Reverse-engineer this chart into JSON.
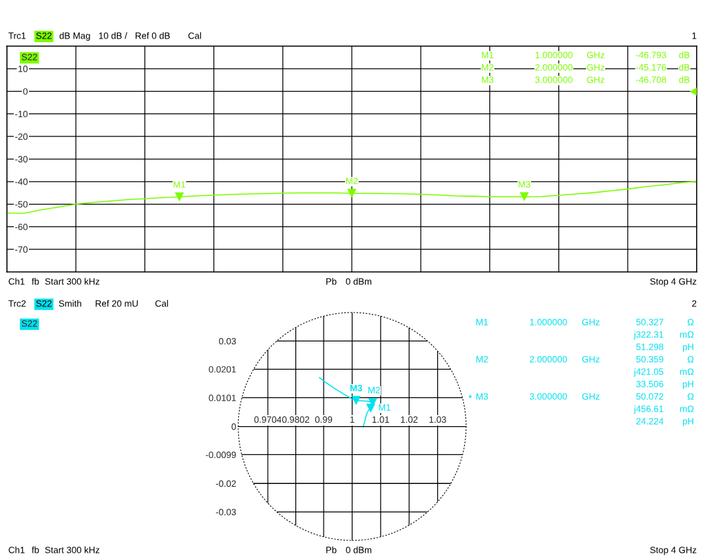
{
  "chart_data": [
    {
      "type": "line",
      "categories": [
        null,
        null,
        null,
        null,
        null,
        null,
        null,
        null,
        null,
        null,
        null,
        null,
        null,
        null,
        null,
        null,
        null,
        null,
        null,
        null,
        null,
        null,
        null,
        null,
        null,
        null,
        null,
        null,
        null,
        null,
        null,
        null,
        null,
        null,
        null,
        null,
        null,
        null,
        null,
        null,
        null
      ],
      "series": [
        {
          "name": "S22",
          "color": "#7cfc00",
          "values": [
            -53.9,
            -54.0,
            -52.5,
            -51.3,
            -50.0,
            -49.2,
            -48.6,
            -48.0,
            -47.6,
            -47.1,
            -46.8,
            -46.3,
            -46.0,
            -45.7,
            -45.5,
            -45.3,
            -45.1,
            -45.0,
            -45.0,
            -45.0,
            -45.2,
            -45.2,
            -45.3,
            -45.4,
            -45.6,
            -45.9,
            -46.3,
            -46.5,
            -46.7,
            -46.7,
            -46.7,
            -46.6,
            -46.1,
            -45.5,
            -44.9,
            -44.1,
            -43.3,
            -42.3,
            -41.5,
            -40.6,
            -39.8
          ]
        },
        {
          "type": "scatter",
          "marker": "triangle",
          "color": "#7cfc00",
          "values": [
            null,
            null,
            null,
            null,
            null,
            null,
            null,
            null,
            null,
            null,
            -46.8,
            null,
            null,
            null,
            null,
            null,
            null,
            null,
            null,
            null,
            -45.2,
            null,
            null,
            null,
            null,
            null,
            null,
            null,
            null,
            null,
            -46.7,
            null,
            null,
            null,
            null,
            null,
            null,
            null,
            null,
            null,
            null
          ]
        }
      ],
      "ylim": [
        -80,
        20
      ],
      "yticks": [
        10,
        0,
        -10,
        -20,
        -30,
        -40,
        -50,
        -60,
        -70
      ],
      "grid": true,
      "legend": "top left",
      "tick_labels": "y",
      "annotations": [
        "Trc1",
        "S22",
        "dB Mag",
        "10 dB /",
        "Ref 0 dB",
        "Cal",
        "1",
        "Ch1",
        "fb",
        "Start 300 kHz",
        "Pb",
        "0 dBm",
        "Stop 4 GHz",
        "M1",
        "1.000000",
        "GHz",
        "-46.793",
        "dB",
        "M2",
        "2.000000",
        "GHz",
        "-45.176",
        "dB",
        "M3",
        "3.000000",
        "GHz",
        "-46.708",
        "dB",
        "M1",
        "M2",
        "M3"
      ]
    },
    {
      "type": "line",
      "series": [
        {
          "name": "S22",
          "color": "#00e0f0",
          "x": [
            1.0038,
            1.0044,
            1.005,
            1.0058,
            1.0065,
            1.0072,
            1.0055,
            1.0034,
            1.0014,
            0.9998,
            0.997,
            0.9938,
            0.9905,
            0.9885
          ],
          "values": [
            -0.0003,
            0.0017,
            0.0042,
            0.0058,
            0.0064,
            0.0084,
            0.0089,
            0.009,
            0.0091,
            0.0098,
            0.0114,
            0.0134,
            0.0156,
            0.0172
          ]
        },
        {
          "type": "scatter",
          "marker": "triangle",
          "color": "#00e0f0",
          "x": [
            1.0065,
            1.0072,
            1.0014
          ],
          "values": [
            0.0064,
            0.0084,
            0.0091
          ]
        }
      ],
      "xlim": [
        0.96,
        1.04
      ],
      "xticks": [
        0.9704,
        0.9802,
        0.99,
        1,
        1.01,
        1.02,
        1.03
      ],
      "ylim": [
        -0.04,
        0.04
      ],
      "yticks": [
        0.03,
        0.0201,
        0.0101,
        0,
        -0.0099,
        -0.02,
        -0.03
      ],
      "grid": true,
      "legend": "top left",
      "annotations": [
        "Trc2",
        "S22",
        "Smith",
        "Ref 20 mU",
        "Cal",
        "2",
        "Ch1",
        "fb",
        "Start 300 kHz",
        "Pb",
        "0 dBm",
        "Stop 4 GHz",
        "M1",
        "1.000000",
        "GHz",
        "50.327",
        "Ω",
        "j322.31",
        "mΩ",
        "51.298",
        "pH",
        "M2",
        "2.000000",
        "GHz",
        "50.359",
        "Ω",
        "j421.05",
        "mΩ",
        "33.506",
        "pH",
        "•",
        "M3",
        "3.000000",
        "GHz",
        "50.072",
        "Ω",
        "j456.61",
        "mΩ",
        "24.224",
        "pH",
        {
          "text": "M1",
          "x": 1.0065,
          "y": 0.0064
        },
        {
          "text": "M2",
          "x": 1.0072,
          "y": 0.0084
        },
        {
          "text": "M3",
          "x": 1.0014,
          "y": 0.0091
        }
      ]
    }
  ]
}
